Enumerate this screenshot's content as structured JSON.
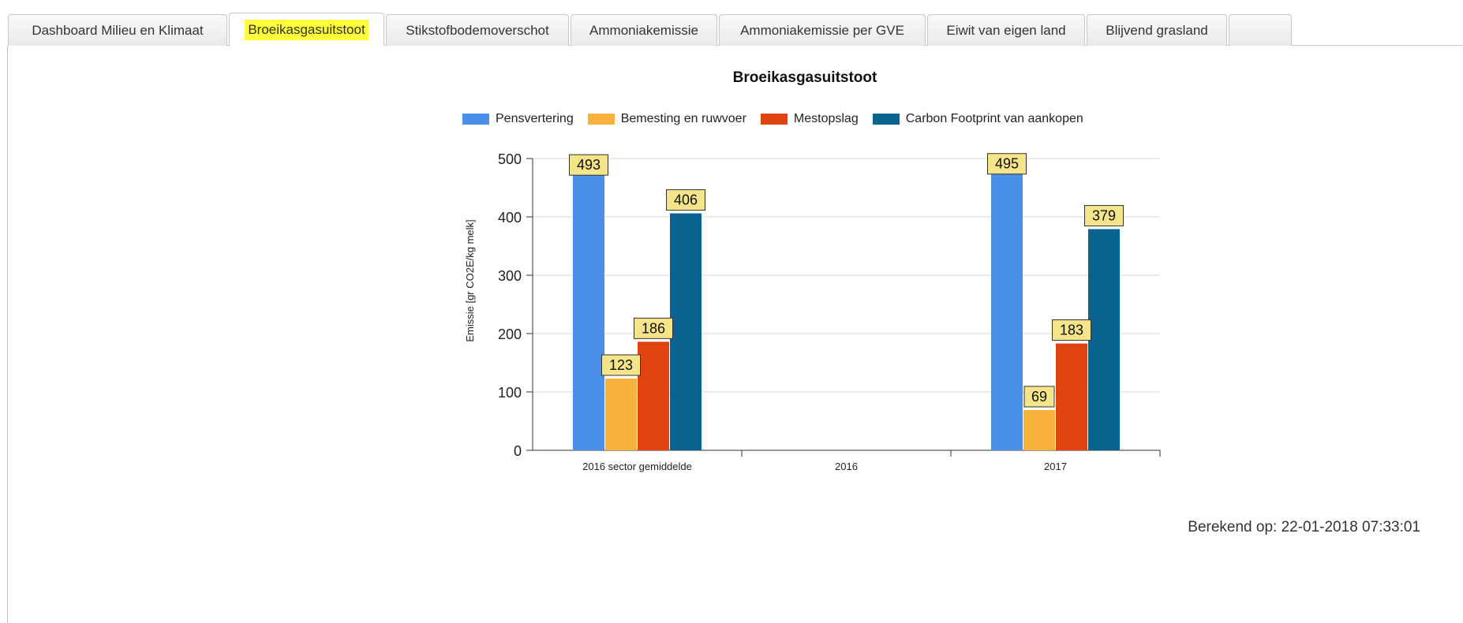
{
  "tabs": [
    {
      "label": "Dashboard Milieu en Klimaat",
      "active": false
    },
    {
      "label": "Broeikasgasuitstoot",
      "active": true
    },
    {
      "label": "Stikstofbodemoverschot",
      "active": false
    },
    {
      "label": "Ammoniakemissie",
      "active": false
    },
    {
      "label": "Ammoniakemissie per GVE",
      "active": false
    },
    {
      "label": "Eiwit van eigen land",
      "active": false
    },
    {
      "label": "Blijvend grasland",
      "active": false
    },
    {
      "label": "",
      "active": false
    }
  ],
  "highlight_color": "#ffff3a",
  "chart_data": {
    "type": "bar",
    "title": "Broeikasgasuitstoot",
    "xlabel": "",
    "ylabel": "Emissie [gr CO2E/kg melk]",
    "ylim": [
      0,
      500
    ],
    "yticks": [
      0,
      100,
      200,
      300,
      400,
      500
    ],
    "grid": true,
    "legend_position": "top",
    "categories": [
      "2016 sector gemiddelde",
      "2016",
      "2017"
    ],
    "series": [
      {
        "name": "Pensvertering",
        "color": "#4a8fe8",
        "values": [
          493,
          null,
          495
        ]
      },
      {
        "name": "Bemesting en ruwvoer",
        "color": "#f6b23d",
        "values": [
          123,
          null,
          69
        ]
      },
      {
        "name": "Mestopslag",
        "color": "#df4310",
        "values": [
          186,
          null,
          183
        ]
      },
      {
        "name": "Carbon Footprint van aankopen",
        "color": "#08638f",
        "values": [
          406,
          null,
          379
        ]
      }
    ],
    "data_label_style": {
      "background": "#f4e58a",
      "border": "#333333"
    }
  },
  "footer": {
    "calculated_label": "Berekend op: 22-01-2018 07:33:01"
  }
}
